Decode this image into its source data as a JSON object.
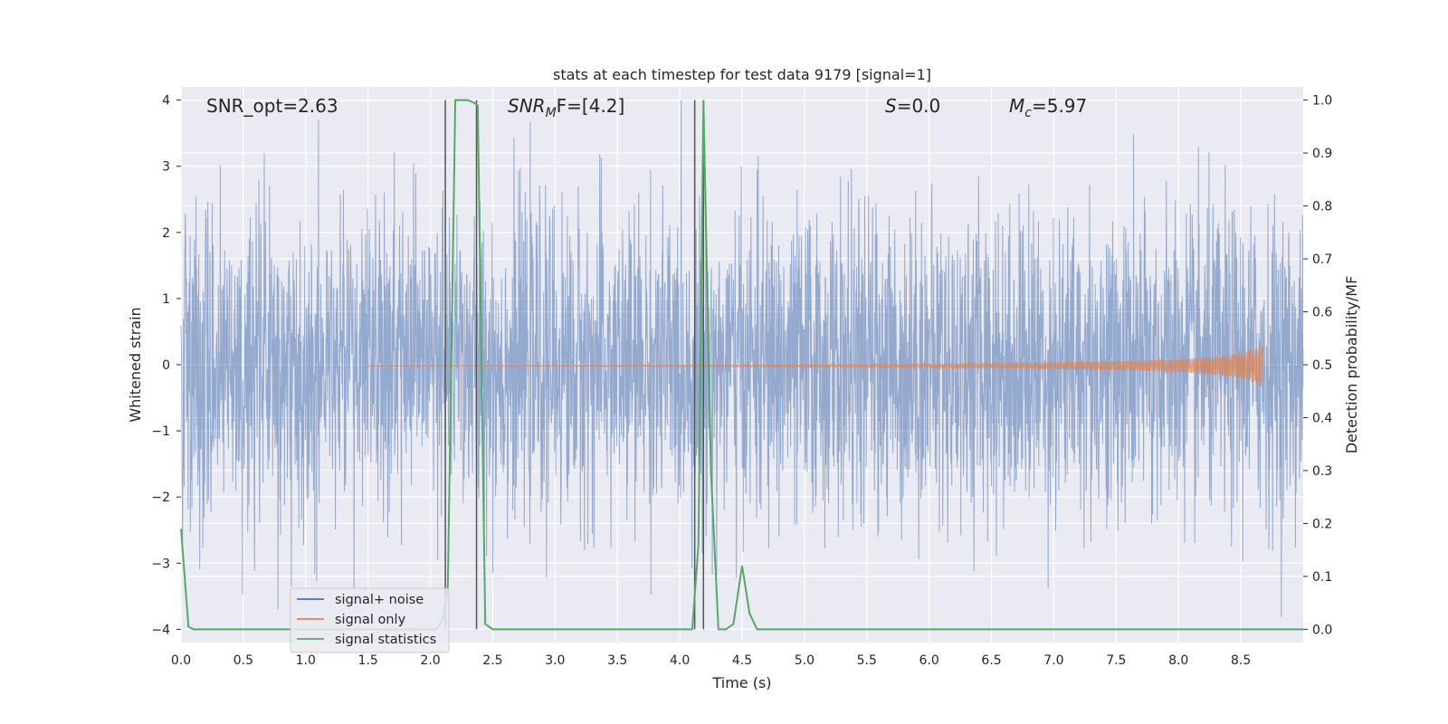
{
  "chart_data": {
    "type": "line",
    "title": "stats at each timestep for test data 9179 [signal=1]",
    "xlabel": "Time (s)",
    "ylabel": "Whitened strain",
    "y2label": "Detection probability/MF",
    "xlim": [
      0.0,
      9.0
    ],
    "ylim": [
      -4.2,
      4.2
    ],
    "y2lim": [
      -0.025,
      1.025
    ],
    "xticks": [
      0.0,
      0.5,
      1.0,
      1.5,
      2.0,
      2.5,
      3.0,
      3.5,
      4.0,
      4.5,
      5.0,
      5.5,
      6.0,
      6.5,
      7.0,
      7.5,
      8.0,
      8.5
    ],
    "yticks": [
      -4,
      -3,
      -2,
      -1,
      0,
      1,
      2,
      3,
      4
    ],
    "y2ticks": [
      0.0,
      0.1,
      0.2,
      0.3,
      0.4,
      0.5,
      0.6,
      0.7,
      0.8,
      0.9,
      1.0
    ],
    "grid": true,
    "legend_position": "lower-left",
    "annotations": {
      "snr_opt": "SNR_opt=2.63",
      "snr_mf_base": "SNR",
      "snr_mf_sub": "M",
      "snr_mf_rest": "F=[4.2]",
      "s_italic": "S",
      "s_rest": "=0.0",
      "mc_base": "M",
      "mc_sub": "c",
      "mc_rest": "=5.97"
    },
    "vertical_lines_x": [
      2.12,
      2.37,
      4.12,
      4.19
    ],
    "series": [
      {
        "name": "signal+ noise",
        "color": "#4c72b0",
        "axis": "left",
        "description_values": "whitened noise, approx. Gaussian, envelope about -3.5 to 4.0, sampled 0.0-9.0 s",
        "amplitude_sigma": 1.0
      },
      {
        "name": "signal only",
        "color": "#dd8452",
        "axis": "left",
        "envelope": {
          "x": [
            1.5,
            3.0,
            4.0,
            5.0,
            6.0,
            7.0,
            7.5,
            8.0,
            8.3,
            8.5,
            8.6,
            8.67
          ],
          "amp": [
            0.005,
            0.01,
            0.015,
            0.02,
            0.03,
            0.05,
            0.07,
            0.1,
            0.14,
            0.2,
            0.26,
            0.32
          ]
        }
      },
      {
        "name": "signal statistics",
        "color": "#55a868",
        "axis": "right",
        "x": [
          0.0,
          0.06,
          0.1,
          0.15,
          0.5,
          1.0,
          1.5,
          2.0,
          2.05,
          2.1,
          2.14,
          2.2,
          2.25,
          2.3,
          2.35,
          2.38,
          2.44,
          2.5,
          3.0,
          3.5,
          4.0,
          4.05,
          4.1,
          4.15,
          4.19,
          4.25,
          4.31,
          4.37,
          4.43,
          4.5,
          4.56,
          4.62,
          5.0,
          6.0,
          7.0,
          8.0,
          9.0
        ],
        "y": [
          0.19,
          0.005,
          0.0,
          0.0,
          0.0,
          0.0,
          0.0,
          0.0,
          0.0,
          0.02,
          0.08,
          1.0,
          1.0,
          1.0,
          0.995,
          0.99,
          0.01,
          0.0,
          0.0,
          0.0,
          0.0,
          0.0,
          0.0,
          0.16,
          1.0,
          0.3,
          0.0,
          0.0,
          0.01,
          0.12,
          0.03,
          0.0,
          0.0,
          0.0,
          0.0,
          0.0,
          0.0
        ]
      }
    ]
  }
}
